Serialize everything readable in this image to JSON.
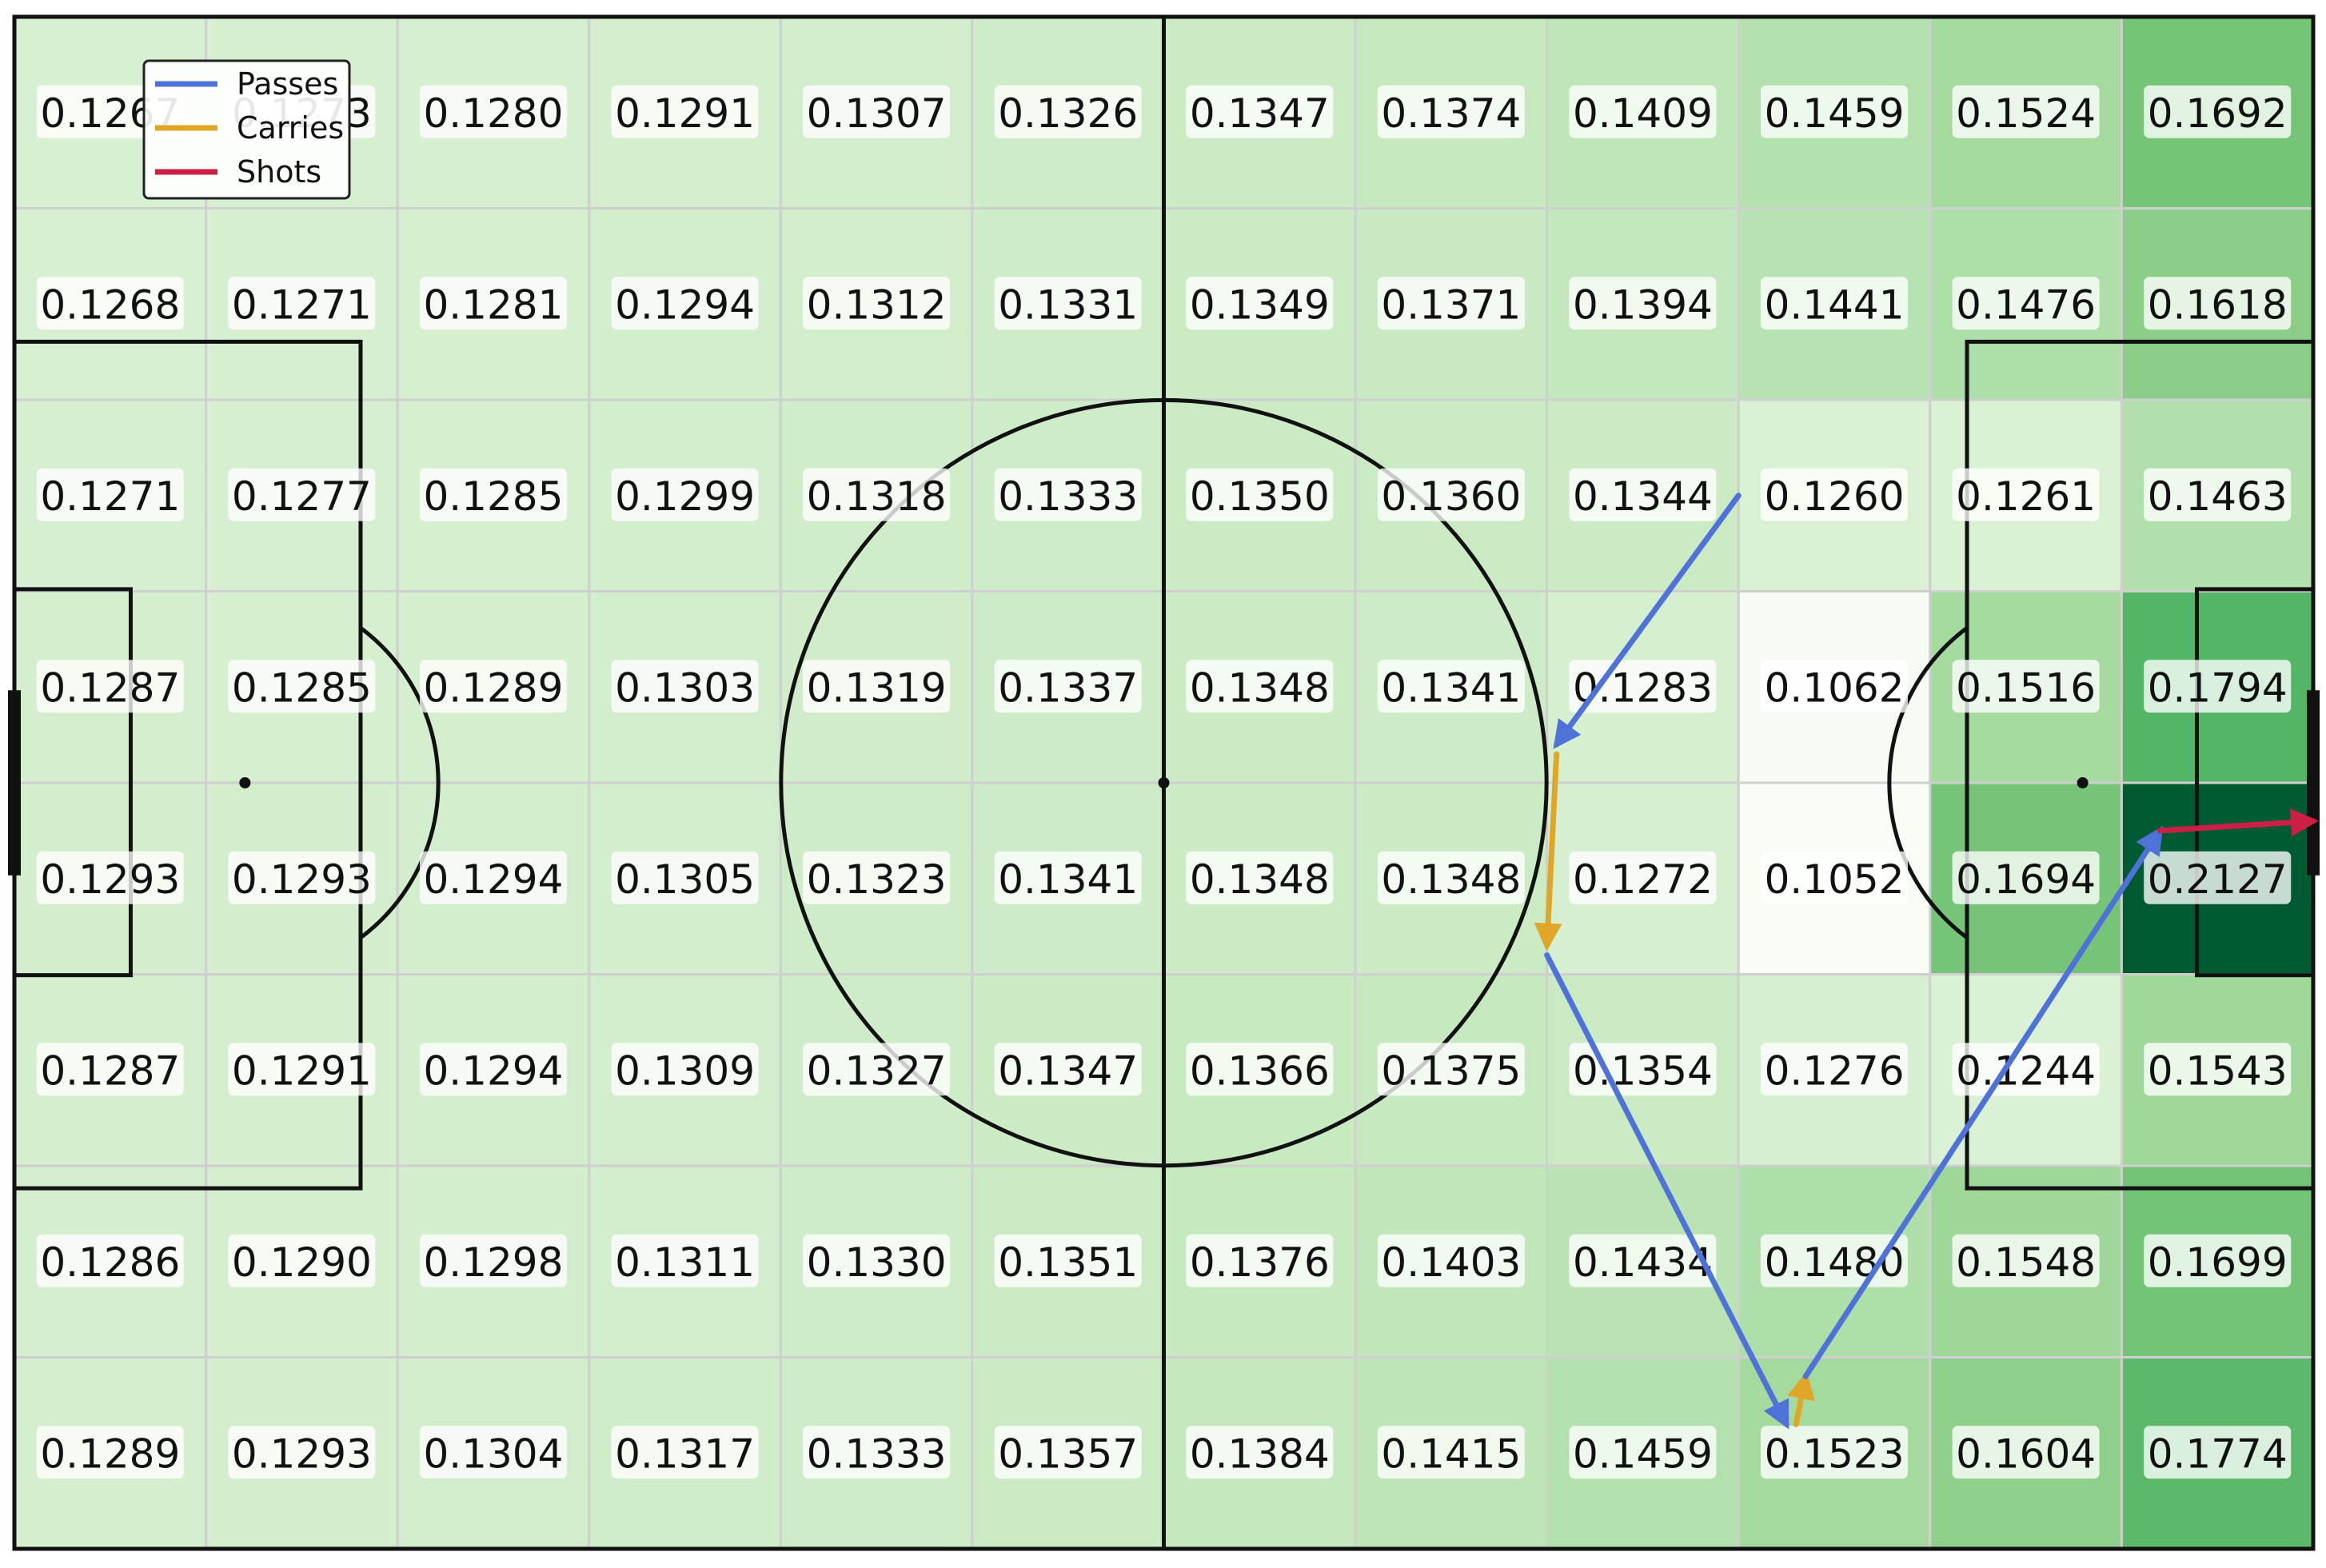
{
  "chart_data": {
    "type": "heatmap",
    "title": "",
    "xlabel": "",
    "ylabel": "",
    "grid": true,
    "colormap": "Greens",
    "pitch_background": "#ffffff",
    "line_color": "#111111",
    "grid_color": "#cfcfcf",
    "rows": 8,
    "cols": 12,
    "values": [
      [
        "0.1267",
        "0.1273",
        "0.1280",
        "0.1291",
        "0.1307",
        "0.1326",
        "0.1347",
        "0.1374",
        "0.1409",
        "0.1459",
        "0.1524",
        "0.1692"
      ],
      [
        "0.1268",
        "0.1271",
        "0.1281",
        "0.1294",
        "0.1312",
        "0.1331",
        "0.1349",
        "0.1371",
        "0.1394",
        "0.1441",
        "0.1476",
        "0.1618"
      ],
      [
        "0.1271",
        "0.1277",
        "0.1285",
        "0.1299",
        "0.1318",
        "0.1333",
        "0.1350",
        "0.1360",
        "0.1344",
        "0.1260",
        "0.1261",
        "0.1463"
      ],
      [
        "0.1287",
        "0.1285",
        "0.1289",
        "0.1303",
        "0.1319",
        "0.1337",
        "0.1348",
        "0.1341",
        "0.1283",
        "0.1062",
        "0.1516",
        "0.1794"
      ],
      [
        "0.1293",
        "0.1293",
        "0.1294",
        "0.1305",
        "0.1323",
        "0.1341",
        "0.1348",
        "0.1348",
        "0.1272",
        "0.1052",
        "0.1694",
        "0.2127"
      ],
      [
        "0.1287",
        "0.1291",
        "0.1294",
        "0.1309",
        "0.1327",
        "0.1347",
        "0.1366",
        "0.1375",
        "0.1354",
        "0.1276",
        "0.1244",
        "0.1543"
      ],
      [
        "0.1286",
        "0.1290",
        "0.1298",
        "0.1311",
        "0.1330",
        "0.1351",
        "0.1376",
        "0.1403",
        "0.1434",
        "0.1480",
        "0.1548",
        "0.1699"
      ],
      [
        "0.1289",
        "0.1293",
        "0.1304",
        "0.1317",
        "0.1333",
        "0.1357",
        "0.1384",
        "0.1415",
        "0.1459",
        "0.1523",
        "0.1604",
        "0.1774"
      ]
    ],
    "legend": {
      "position": "top-left",
      "entries": [
        {
          "label": "Passes",
          "color": "#4f72d8"
        },
        {
          "label": "Carries",
          "color": "#e0a628"
        },
        {
          "label": "Shots",
          "color": "#cc1f45"
        }
      ]
    },
    "actions": [
      {
        "type": "pass",
        "start": [
          9.0,
          2.5
        ],
        "end": [
          8.05,
          3.8
        ]
      },
      {
        "type": "carry",
        "start": [
          8.05,
          3.85
        ],
        "end": [
          8.0,
          4.85
        ]
      },
      {
        "type": "pass",
        "start": [
          8.0,
          4.9
        ],
        "end": [
          9.25,
          7.35
        ]
      },
      {
        "type": "carry",
        "start": [
          9.3,
          7.35
        ],
        "end": [
          9.35,
          7.1
        ]
      },
      {
        "type": "pass",
        "start": [
          9.35,
          7.1
        ],
        "end": [
          11.2,
          4.25
        ]
      },
      {
        "type": "shot",
        "start": [
          11.2,
          4.25
        ],
        "end": [
          12.0,
          4.2
        ]
      }
    ]
  }
}
